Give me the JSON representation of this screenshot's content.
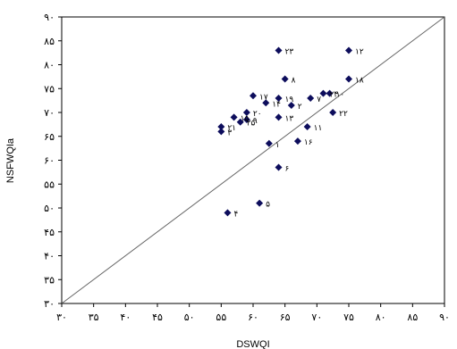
{
  "chart_data": {
    "type": "scatter",
    "xlabel": "DSWQI",
    "ylabel": "NSFWQIa",
    "xlim": [
      30,
      90
    ],
    "ylim": [
      30,
      90
    ],
    "x_tick_labels": [
      "۳۰",
      "۳۵",
      "۴۰",
      "۴۵",
      "۵۰",
      "۵۵",
      "۶۰",
      "۶۵",
      "۷۰",
      "۷۵",
      "۸۰",
      "۸۵",
      "۹۰"
    ],
    "y_tick_labels": [
      "۳۰",
      "۳۵",
      "۴۰",
      "۴۵",
      "۵۰",
      "۵۵",
      "۶۰",
      "۶۵",
      "۷۰",
      "۷۵",
      "۸۰",
      "۸۵",
      "۹۰"
    ],
    "reference_line": {
      "from": [
        30,
        30
      ],
      "to": [
        90,
        90
      ],
      "color": "#666666"
    },
    "grid": false,
    "marker_color": "#0d0d5c",
    "points": [
      {
        "label": "۱",
        "x": 62.5,
        "y": 63.5
      },
      {
        "label": "۲",
        "x": 66.0,
        "y": 71.5
      },
      {
        "label": "۳",
        "x": 55.0,
        "y": 66.0
      },
      {
        "label": "۴",
        "x": 56.0,
        "y": 49.0
      },
      {
        "label": "۵",
        "x": 61.0,
        "y": 51.0
      },
      {
        "label": "۶",
        "x": 64.0,
        "y": 58.5
      },
      {
        "label": "۷",
        "x": 69.0,
        "y": 73.0
      },
      {
        "label": "۸",
        "x": 65.0,
        "y": 77.0
      },
      {
        "label": "۹",
        "x": 59.0,
        "y": 68.5
      },
      {
        "label": "۱۰",
        "x": 72.0,
        "y": 74.0
      },
      {
        "label": "۱۱",
        "x": 68.5,
        "y": 67.0
      },
      {
        "label": "۱۲",
        "x": 75.0,
        "y": 83.0
      },
      {
        "label": "۱۳",
        "x": 64.0,
        "y": 69.0
      },
      {
        "label": "۱۴",
        "x": 62.0,
        "y": 72.0
      },
      {
        "label": "۱۵",
        "x": 57.0,
        "y": 69.0
      },
      {
        "label": "۱۶",
        "x": 67.0,
        "y": 64.0
      },
      {
        "label": "۱۷",
        "x": 60.0,
        "y": 73.5
      },
      {
        "label": "۱۸",
        "x": 75.0,
        "y": 77.0
      },
      {
        "label": "۱۹",
        "x": 64.0,
        "y": 73.0
      },
      {
        "label": "۲۰",
        "x": 59.0,
        "y": 70.0
      },
      {
        "label": "۲۱",
        "x": 55.0,
        "y": 67.0
      },
      {
        "label": "۲۲",
        "x": 72.5,
        "y": 70.0
      },
      {
        "label": "۲۳",
        "x": 64.0,
        "y": 83.0
      },
      {
        "label": "۲۴",
        "x": 71.0,
        "y": 74.0
      },
      {
        "label": "۲۵",
        "x": 58.0,
        "y": 68.0
      }
    ]
  }
}
